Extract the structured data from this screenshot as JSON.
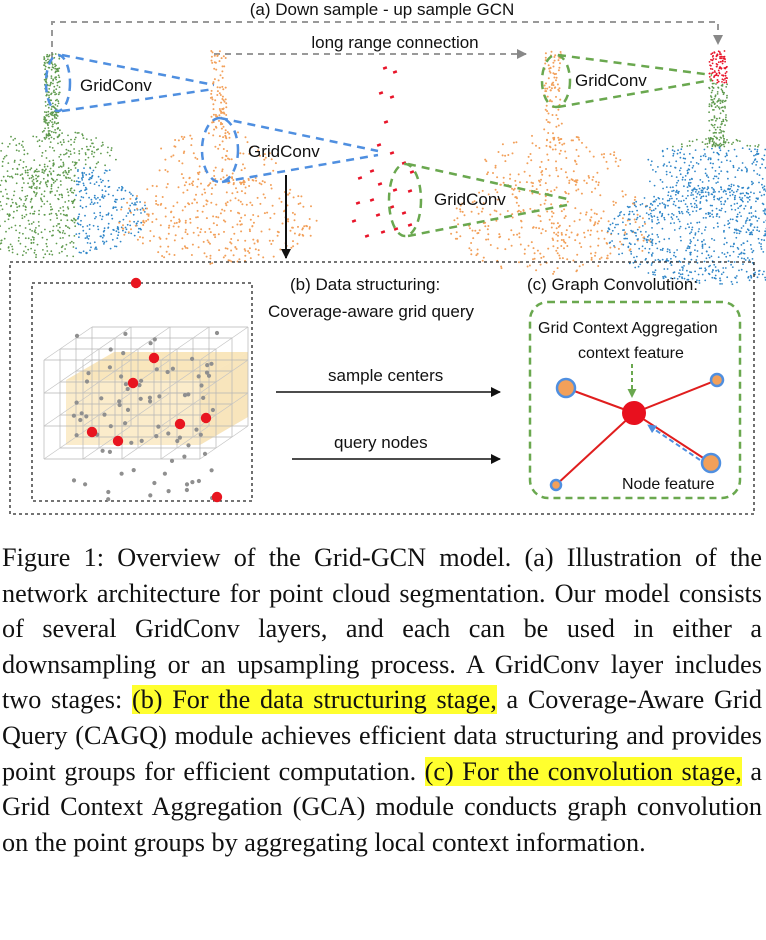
{
  "figure": {
    "title_a": "(a) Down sample - up sample GCN",
    "long_range": "long range connection",
    "gridconv_1": "GridConv",
    "gridconv_2": "GridConv",
    "gridconv_3": "GridConv",
    "gridconv_4": "GridConv",
    "title_b_line1": "(b) Data structuring:",
    "title_b_line2": "Coverage-aware grid query",
    "title_c": "(c)  Graph Convolution:",
    "gca_label": "Grid Context Aggregation",
    "context_feature": "context feature",
    "node_feature": "Node feature",
    "sample_centers": "sample centers",
    "query_nodes": "query nodes"
  },
  "colors": {
    "green_points": "#5f9a4e",
    "blue_points": "#2f86c8",
    "orange_points": "#f2a05a",
    "red_points": "#e8152a",
    "dash_blue": "#4f8fe0",
    "dash_green": "#6aa84f",
    "highlight": "#ffff2e"
  },
  "caption": {
    "p1": "Figure 1: Overview of the Grid-GCN model. (a) Illustration of the network architecture for point cloud segmentation. Our model consists of several GridConv layers, and each can be used in either a downsampling or an upsampling process. A GridConv layer includes two stages: ",
    "h1": "(b) For the data structuring stage,",
    "p2": " a Coverage-Aware Grid Query (CAGQ) module achieves efficient data structuring and provides point groups for efficient computation. ",
    "h2": "(c) For the convolution stage,",
    "p3": " a Grid Context Aggregation (GCA) module conducts graph convolution on the point groups by aggregating local context information."
  }
}
